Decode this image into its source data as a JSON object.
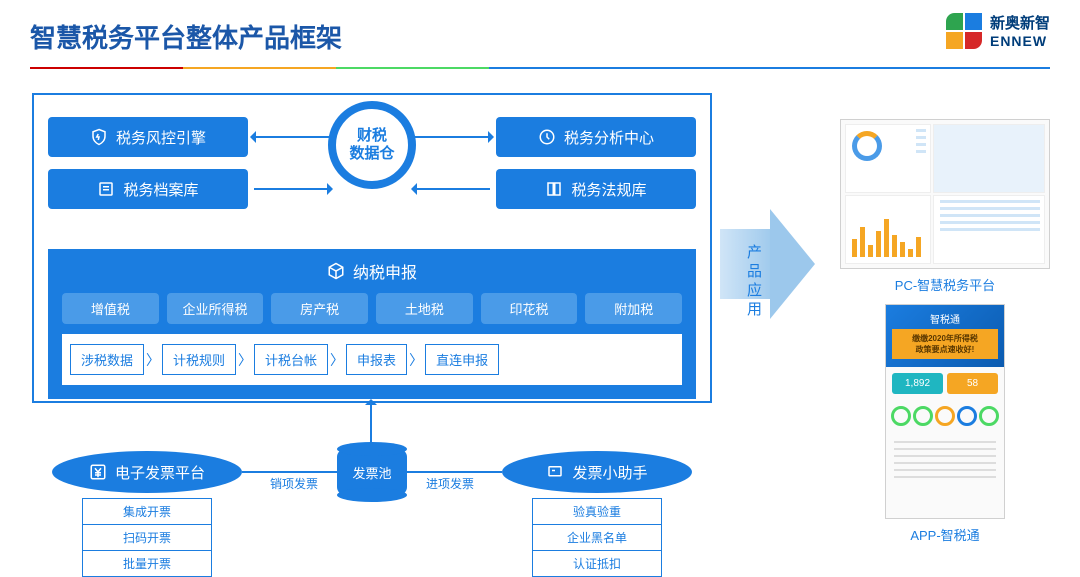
{
  "title": "智慧税务平台整体产品框架",
  "logo": {
    "cn": "新奥新智",
    "en": "ENNEW"
  },
  "colors": {
    "primary": "#1b7de0",
    "primary_dark": "#1b57a8",
    "accent": "#f5a623",
    "green": "#4cd964",
    "red": "#c00",
    "logo_green": "#2ea44f",
    "logo_blue": "#1b7de0",
    "logo_yellow": "#f5a623",
    "logo_red": "#d62828"
  },
  "hub": {
    "line1": "财税",
    "line2": "数据仓"
  },
  "top_modules": {
    "left1": "税务风控引擎",
    "right1": "税务分析中心",
    "left2": "税务档案库",
    "right2": "税务法规库"
  },
  "declare": {
    "title": "纳税申报",
    "taxes": [
      "增值税",
      "企业所得税",
      "房产税",
      "土地税",
      "印花税",
      "附加税"
    ],
    "flow": [
      "涉税数据",
      "计税规则",
      "计税台帐",
      "申报表",
      "直连申报"
    ]
  },
  "pool": {
    "center": "发票池",
    "label_left": "销项发票",
    "label_right": "进项发票",
    "left_oval": "电子发票平台",
    "right_oval": "发票小助手",
    "left_list": [
      "集成开票",
      "扫码开票",
      "批量开票"
    ],
    "right_list": [
      "验真验重",
      "企业黑名单",
      "认证抵扣"
    ]
  },
  "big_arrow": "产品应用",
  "products": {
    "pc_caption": "PC-智慧税务平台",
    "app_caption": "APP-智税通",
    "pc_bars": [
      18,
      30,
      12,
      26,
      38,
      22,
      15,
      8,
      20
    ],
    "app": {
      "header": "智税通",
      "banner1": "缴缴2020年所得税",
      "banner2": "政策要点速收好!",
      "stat1": {
        "value": "1,892",
        "color": "#1fb6c1"
      },
      "stat2": {
        "value": "58",
        "color": "#f5a623"
      },
      "ring_colors": [
        "#4cd964",
        "#4cd964",
        "#f5a623",
        "#1b7de0",
        "#4cd964"
      ]
    }
  }
}
